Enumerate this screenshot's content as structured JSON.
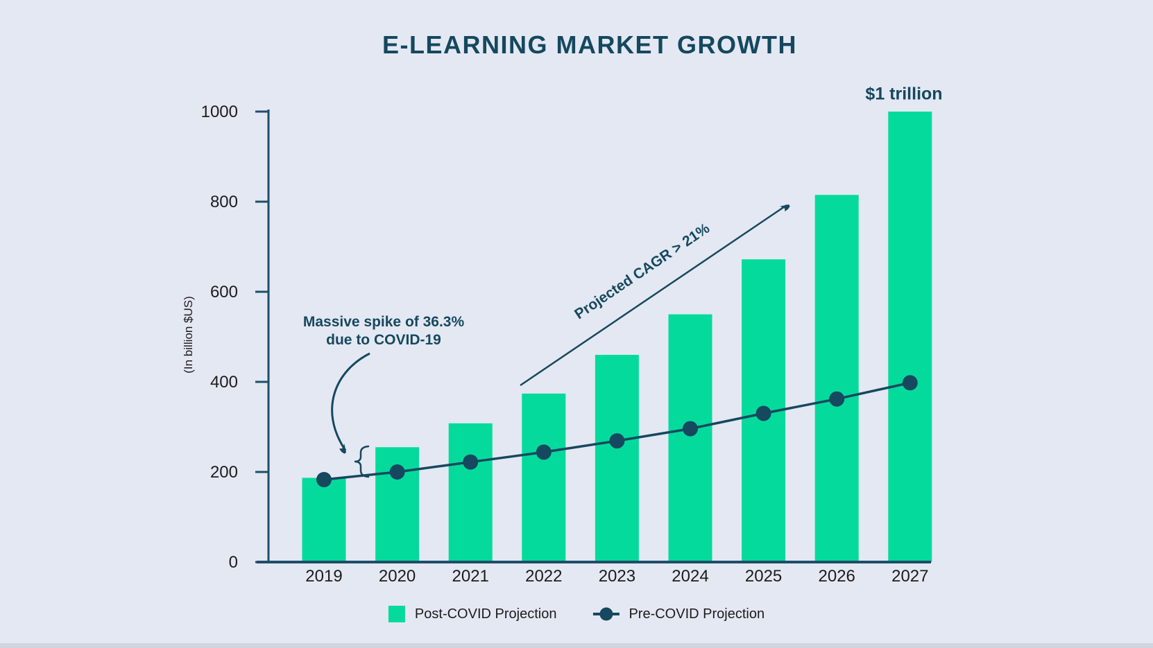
{
  "title": "E-LEARNING MARKET GROWTH",
  "colors": {
    "background": "#E4E8F2",
    "bar_green": "#05DA9D",
    "navy": "#16485F",
    "axis": "#1F4E68",
    "tick_label": "#1B1C1E",
    "footer_strip": "#CFD4DE"
  },
  "chart_data": {
    "type": "bar",
    "subtype": "bar+line combo",
    "title": "E-LEARNING MARKET GROWTH",
    "categories": [
      "2019",
      "2020",
      "2021",
      "2022",
      "2023",
      "2024",
      "2025",
      "2026",
      "2027"
    ],
    "series": [
      {
        "name": "Post-COVID Projection",
        "type": "bar",
        "color": "#05DA9D",
        "values": [
          187,
          255,
          308,
          374,
          460,
          550,
          672,
          815,
          1000
        ]
      },
      {
        "name": "Pre-COVID Projection",
        "type": "line",
        "color": "#16485F",
        "values": [
          183,
          200,
          222,
          244,
          269,
          296,
          330,
          362,
          398
        ]
      }
    ],
    "xlabel": "",
    "ylabel": "(In billion $US)",
    "yticks": [
      0,
      200,
      400,
      600,
      800,
      1000
    ],
    "ylim": [
      0,
      1000
    ],
    "grid": false,
    "legend_position": "bottom",
    "annotations": [
      "Massive spike of 36.3% due to COVID-19 (brace between pre-COVID line and 2020 bar top)",
      "Projected CAGR > 21% (arrow from 2022 toward 2026 bar top)",
      "$1 trillion (above 2027 bar)"
    ]
  },
  "ylabel": "(In billion $US)",
  "annotations": {
    "spike_line1": "Massive spike of 36.3%",
    "spike_line2": "due to COVID-19",
    "cagr": "Projected CAGR > 21%",
    "trillion": "$1 trillion"
  },
  "legend": {
    "post_label": "Post-COVID Projection",
    "pre_label": "Pre-COVID Projection"
  }
}
